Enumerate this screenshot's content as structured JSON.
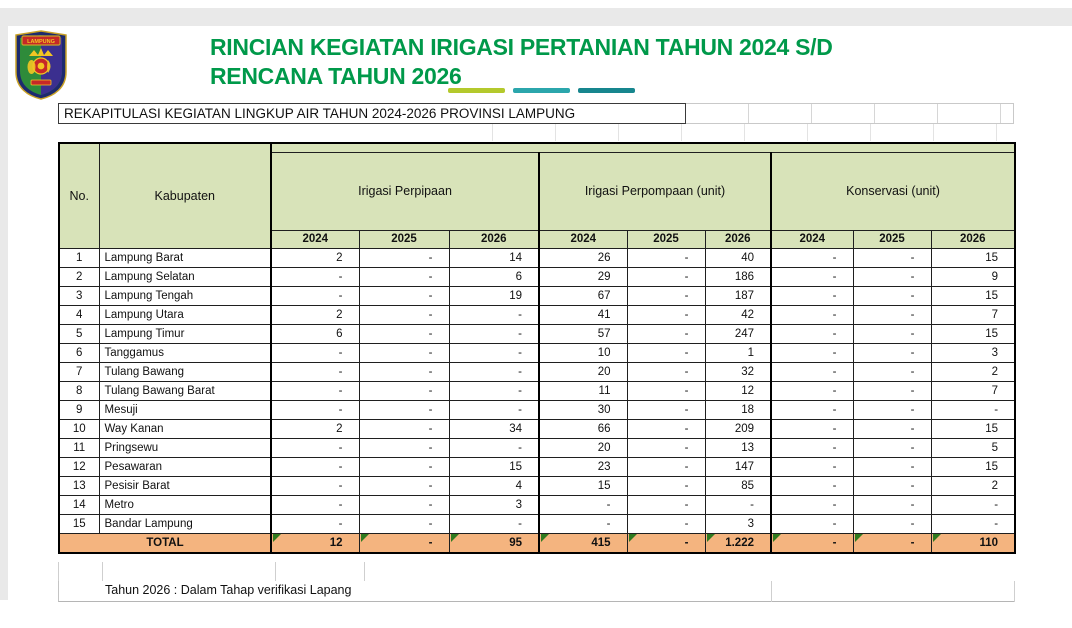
{
  "page": {
    "title_line1": "RINCIAN KEGIATAN IRIGASI PERTANIAN TAHUN 2024 S/D",
    "title_line2": "RENCANA TAHUN 2026",
    "subtitle": "REKAPITULASI KEGIATAN LINGKUP AIR TAHUN 2024-2026 PROVINSI LAMPUNG",
    "footnote": "Tahun 2026 : Dalam Tahap verifikasi Lapang",
    "logo_label": "LAMPUNG",
    "colors": {
      "title_green": "#00994a",
      "header_fill": "#d8e3b9",
      "total_fill": "#f4b47f",
      "marker_green": "#2f7a1f",
      "dash_yellow_green": "#b4c92c",
      "dash_teal": "#2ba6ac",
      "dash_dark_teal": "#17868e"
    }
  },
  "table": {
    "col_no_label": "No.",
    "col_kabupaten_label": "Kabupaten",
    "groups": [
      {
        "label": "Irigasi Perpipaan",
        "years": [
          "2024",
          "2025",
          "2026"
        ]
      },
      {
        "label": "Irigasi Perpompaan (unit)",
        "years": [
          "2024",
          "2025",
          "2026"
        ]
      },
      {
        "label": "Konservasi (unit)",
        "years": [
          "2024",
          "2025",
          "2026"
        ]
      }
    ],
    "rows": [
      {
        "no": "1",
        "kabupaten": "Lampung Barat",
        "values": [
          "2",
          "-",
          "14",
          "26",
          "-",
          "40",
          "-",
          "-",
          "15"
        ]
      },
      {
        "no": "2",
        "kabupaten": "Lampung Selatan",
        "values": [
          "-",
          "-",
          "6",
          "29",
          "-",
          "186",
          "-",
          "-",
          "9"
        ]
      },
      {
        "no": "3",
        "kabupaten": "Lampung Tengah",
        "values": [
          "-",
          "-",
          "19",
          "67",
          "-",
          "187",
          "-",
          "-",
          "15"
        ]
      },
      {
        "no": "4",
        "kabupaten": "Lampung Utara",
        "values": [
          "2",
          "-",
          "-",
          "41",
          "-",
          "42",
          "-",
          "-",
          "7"
        ]
      },
      {
        "no": "5",
        "kabupaten": "Lampung Timur",
        "values": [
          "6",
          "-",
          "-",
          "57",
          "-",
          "247",
          "-",
          "-",
          "15"
        ]
      },
      {
        "no": "6",
        "kabupaten": "Tanggamus",
        "values": [
          "-",
          "-",
          "-",
          "10",
          "-",
          "1",
          "-",
          "-",
          "3"
        ]
      },
      {
        "no": "7",
        "kabupaten": "Tulang Bawang",
        "values": [
          "-",
          "-",
          "-",
          "20",
          "-",
          "32",
          "-",
          "-",
          "2"
        ]
      },
      {
        "no": "8",
        "kabupaten": "Tulang Bawang Barat",
        "values": [
          "-",
          "-",
          "-",
          "11",
          "-",
          "12",
          "-",
          "-",
          "7"
        ]
      },
      {
        "no": "9",
        "kabupaten": "Mesuji",
        "values": [
          "-",
          "-",
          "-",
          "30",
          "-",
          "18",
          "-",
          "-",
          "-"
        ]
      },
      {
        "no": "10",
        "kabupaten": "Way Kanan",
        "values": [
          "2",
          "-",
          "34",
          "66",
          "-",
          "209",
          "-",
          "-",
          "15"
        ]
      },
      {
        "no": "11",
        "kabupaten": "Pringsewu",
        "values": [
          "-",
          "-",
          "-",
          "20",
          "-",
          "13",
          "-",
          "-",
          "5"
        ]
      },
      {
        "no": "12",
        "kabupaten": "Pesawaran",
        "values": [
          "-",
          "-",
          "15",
          "23",
          "-",
          "147",
          "-",
          "-",
          "15"
        ]
      },
      {
        "no": "13",
        "kabupaten": "Pesisir Barat",
        "values": [
          "-",
          "-",
          "4",
          "15",
          "-",
          "85",
          "-",
          "-",
          "2"
        ]
      },
      {
        "no": "14",
        "kabupaten": "Metro",
        "values": [
          "-",
          "-",
          "3",
          "-",
          "-",
          "-",
          "-",
          "-",
          "-"
        ]
      },
      {
        "no": "15",
        "kabupaten": "Bandar Lampung",
        "values": [
          "-",
          "-",
          "-",
          "-",
          "-",
          "3",
          "-",
          "-",
          "-"
        ]
      }
    ],
    "total": {
      "label": "TOTAL",
      "values": [
        "12",
        "-",
        "95",
        "415",
        "-",
        "1.222",
        "-",
        "-",
        "110"
      ]
    }
  }
}
